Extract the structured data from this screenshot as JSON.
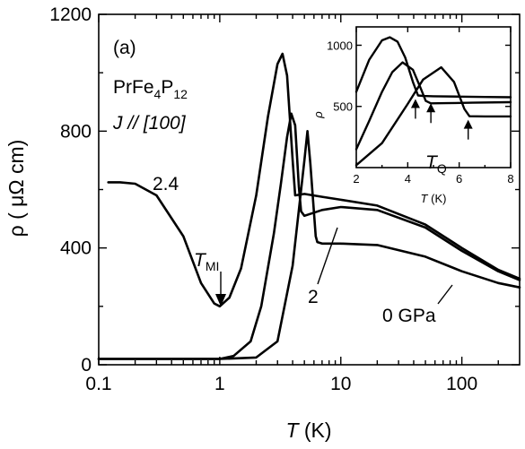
{
  "chart_data": {
    "type": "line",
    "panel_label": "(a)",
    "material": "PrFe4P12",
    "material_parts": {
      "a": "PrFe",
      "b": "4",
      "c": "P",
      "d": "12"
    },
    "current_direction": "J // [100]",
    "xlabel": {
      "symbol": "T",
      "unit": " (K)"
    },
    "ylabel": "ρ ( μΩ cm)",
    "xscale": "log",
    "xlim": [
      0.1,
      300
    ],
    "ylim": [
      0,
      1200
    ],
    "x_ticks": [
      0.1,
      1,
      10,
      100
    ],
    "x_tick_labels": [
      "0.1",
      "1",
      "10",
      "100"
    ],
    "y_ticks": [
      0,
      400,
      800,
      1200
    ],
    "y_tick_labels": [
      "0",
      "400",
      "800",
      "1200"
    ],
    "series": [
      {
        "label": "0 GPa",
        "x": [
          0.1,
          1,
          2,
          3,
          4,
          5,
          5.3,
          5.6,
          6.2,
          6.4,
          7,
          10,
          20,
          50,
          100,
          200,
          300
        ],
        "y": [
          20,
          20,
          25,
          80,
          340,
          700,
          800,
          690,
          440,
          420,
          415,
          415,
          410,
          370,
          320,
          280,
          265
        ]
      },
      {
        "label": "2",
        "x": [
          0.1,
          1,
          1.3,
          1.8,
          2.2,
          2.8,
          3.2,
          3.6,
          3.9,
          4.2,
          4.5,
          4.7,
          5,
          7,
          10,
          20,
          50,
          100,
          200,
          300
        ],
        "y": [
          20,
          20,
          30,
          80,
          200,
          450,
          620,
          780,
          860,
          820,
          610,
          525,
          510,
          530,
          540,
          530,
          470,
          390,
          320,
          290
        ]
      },
      {
        "label": "2.4",
        "x": [
          0.12,
          0.15,
          0.2,
          0.3,
          0.5,
          0.7,
          0.9,
          1,
          1.2,
          1.5,
          2,
          2.5,
          3,
          3.3,
          3.6,
          4,
          4.2,
          5,
          7,
          10,
          20,
          50,
          100,
          200,
          300
        ],
        "y": [
          625,
          625,
          620,
          580,
          440,
          280,
          210,
          200,
          230,
          330,
          580,
          850,
          1030,
          1065,
          990,
          700,
          580,
          585,
          575,
          565,
          545,
          480,
          400,
          325,
          295
        ]
      }
    ],
    "annotations": {
      "tmi": {
        "symbol": "T",
        "sub": "MI",
        "x": 1,
        "y": 200
      },
      "label_24": "2.4",
      "label_2": "2",
      "label_0": "0 GPa"
    },
    "inset": {
      "type": "line",
      "xlabel": {
        "symbol": "T",
        "unit": " (K)"
      },
      "ylabel": "ρ",
      "xlim": [
        2,
        8
      ],
      "ylim": [
        0,
        1150
      ],
      "x_ticks": [
        2,
        4,
        6,
        8
      ],
      "x_tick_labels": [
        "2",
        "4",
        "6",
        "8"
      ],
      "y_ticks": [
        500,
        1000
      ],
      "y_tick_labels": [
        "500",
        "1000"
      ],
      "tq_label": {
        "symbol": "T",
        "sub": "Q"
      },
      "series": [
        {
          "label": "2.4",
          "x": [
            2,
            2.5,
            3,
            3.3,
            3.6,
            3.9,
            4.2,
            4.4,
            4.6,
            5,
            6,
            7,
            8
          ],
          "y": [
            620,
            880,
            1040,
            1065,
            1030,
            900,
            700,
            590,
            585,
            583,
            580,
            577,
            575
          ]
        },
        {
          "label": "2",
          "x": [
            2,
            2.5,
            3,
            3.4,
            3.8,
            4.2,
            4.5,
            4.7,
            4.9,
            5.5,
            6.5,
            8
          ],
          "y": [
            150,
            380,
            620,
            780,
            860,
            800,
            650,
            545,
            525,
            527,
            530,
            535
          ]
        },
        {
          "label": "0 GPa",
          "x": [
            2,
            3,
            4,
            4.6,
            5.3,
            5.8,
            6.2,
            6.4,
            7,
            8
          ],
          "y": [
            20,
            200,
            520,
            720,
            820,
            700,
            480,
            420,
            418,
            418
          ]
        }
      ],
      "tq_arrows_x": [
        4.3,
        4.9,
        6.35
      ]
    }
  }
}
